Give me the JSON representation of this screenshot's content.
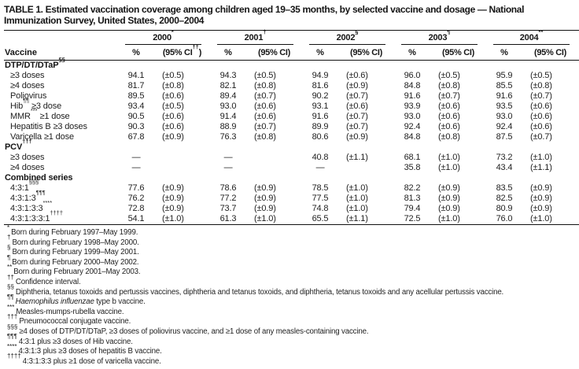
{
  "title": "TABLE 1. Estimated vaccination coverage among children aged 19–35 months, by selected vaccine and dosage — National Immunization Survey, United States, 2000–2004",
  "table": {
    "row_header": "Vaccine",
    "years": [
      {
        "label": "2000",
        "sup": "*",
        "pct_label": "%",
        "ci_prefix": "(95% CI",
        "ci_sup": "††",
        "ci_suffix": ")"
      },
      {
        "label": "2001",
        "sup": "†",
        "pct_label": "%",
        "ci_prefix": "(95% CI",
        "ci_sup": "",
        "ci_suffix": ")"
      },
      {
        "label": "2002",
        "sup": "§",
        "pct_label": "%",
        "ci_prefix": "(95% CI",
        "ci_sup": "",
        "ci_suffix": ")"
      },
      {
        "label": "2003",
        "sup": "¶",
        "pct_label": "%",
        "ci_prefix": "(95% CI",
        "ci_sup": "",
        "ci_suffix": ")"
      },
      {
        "label": "2004",
        "sup": "**",
        "pct_label": "%",
        "ci_prefix": "(95% CI",
        "ci_sup": "",
        "ci_suffix": ")"
      }
    ],
    "sections": [
      {
        "header": [
          {
            "t": "DTP/DT/DTaP"
          },
          {
            "s": "§§"
          }
        ],
        "rows": [
          {
            "label": [
              {
                "t": "≥3 doses"
              }
            ],
            "cells": [
              [
                "94.1",
                "(±0.5)"
              ],
              [
                "94.3",
                "(±0.5)"
              ],
              [
                "94.9",
                "(±0.6)"
              ],
              [
                "96.0",
                "(±0.5)"
              ],
              [
                "95.9",
                "(±0.5)"
              ]
            ]
          },
          {
            "label": [
              {
                "t": "≥4 doses"
              }
            ],
            "cells": [
              [
                "81.7",
                "(±0.8)"
              ],
              [
                "82.1",
                "(±0.8)"
              ],
              [
                "81.6",
                "(±0.9)"
              ],
              [
                "84.8",
                "(±0.8)"
              ],
              [
                "85.5",
                "(±0.8)"
              ]
            ]
          },
          {
            "label": [
              {
                "t": "Poliovirus"
              }
            ],
            "cells": [
              [
                "89.5",
                "(±0.6)"
              ],
              [
                "89.4",
                "(±0.7)"
              ],
              [
                "90.2",
                "(±0.7)"
              ],
              [
                "91.6",
                "(±0.7)"
              ],
              [
                "91.6",
                "(±0.7)"
              ]
            ]
          },
          {
            "label": [
              {
                "t": "Hib"
              },
              {
                "s": "¶¶"
              },
              {
                "t": " ≥3 dose"
              }
            ],
            "cells": [
              [
                "93.4",
                "(±0.5)"
              ],
              [
                "93.0",
                "(±0.6)"
              ],
              [
                "93.1",
                "(±0.6)"
              ],
              [
                "93.9",
                "(±0.6)"
              ],
              [
                "93.5",
                "(±0.6)"
              ]
            ]
          },
          {
            "label": [
              {
                "t": "MMR"
              },
              {
                "s": "***"
              },
              {
                "t": " ≥1 dose"
              }
            ],
            "cells": [
              [
                "90.5",
                "(±0.6)"
              ],
              [
                "91.4",
                "(±0.6)"
              ],
              [
                "91.6",
                "(±0.7)"
              ],
              [
                "93.0",
                "(±0.6)"
              ],
              [
                "93.0",
                "(±0.6)"
              ]
            ]
          },
          {
            "label": [
              {
                "t": "Hepatitis B ≥3 doses"
              }
            ],
            "cells": [
              [
                "90.3",
                "(±0.6)"
              ],
              [
                "88.9",
                "(±0.7)"
              ],
              [
                "89.9",
                "(±0.7)"
              ],
              [
                "92.4",
                "(±0.6)"
              ],
              [
                "92.4",
                "(±0.6)"
              ]
            ]
          },
          {
            "label": [
              {
                "t": "Varicella ≥1 dose"
              }
            ],
            "cells": [
              [
                "67.8",
                "(±0.9)"
              ],
              [
                "76.3",
                "(±0.8)"
              ],
              [
                "80.6",
                "(±0.9)"
              ],
              [
                "84.8",
                "(±0.8)"
              ],
              [
                "87.5",
                "(±0.7)"
              ]
            ]
          }
        ]
      },
      {
        "header": [
          {
            "t": "PCV"
          },
          {
            "s": "†††"
          }
        ],
        "rows": [
          {
            "label": [
              {
                "t": "≥3 doses"
              }
            ],
            "cells": [
              [
                "—",
                ""
              ],
              [
                "—",
                ""
              ],
              [
                "40.8",
                "(±1.1)"
              ],
              [
                "68.1",
                "(±1.0)"
              ],
              [
                "73.2",
                "(±1.0)"
              ]
            ]
          },
          {
            "label": [
              {
                "t": "≥4 doses"
              }
            ],
            "cells": [
              [
                "—",
                ""
              ],
              [
                "—",
                ""
              ],
              [
                "—",
                ""
              ],
              [
                "35.8",
                "(±1.0)"
              ],
              [
                "43.4",
                "(±1.1)"
              ]
            ]
          }
        ]
      },
      {
        "header": [
          {
            "t": "Combined series"
          }
        ],
        "rows": [
          {
            "label": [
              {
                "t": "4:3:1"
              },
              {
                "s": "§§§"
              }
            ],
            "cells": [
              [
                "77.6",
                "(±0.9)"
              ],
              [
                "78.6",
                "(±0.9)"
              ],
              [
                "78.5",
                "(±1.0)"
              ],
              [
                "82.2",
                "(±0.9)"
              ],
              [
                "83.5",
                "(±0.9)"
              ]
            ]
          },
          {
            "label": [
              {
                "t": "4:3:1:3"
              },
              {
                "s": "¶¶¶"
              }
            ],
            "cells": [
              [
                "76.2",
                "(±0.9)"
              ],
              [
                "77.2",
                "(±0.9)"
              ],
              [
                "77.5",
                "(±1.0)"
              ],
              [
                "81.3",
                "(±0.9)"
              ],
              [
                "82.5",
                "(±0.9)"
              ]
            ]
          },
          {
            "label": [
              {
                "t": "4:3:1:3:3"
              },
              {
                "s": "****"
              }
            ],
            "cells": [
              [
                "72.8",
                "(±0.9)"
              ],
              [
                "73.7",
                "(±0.9)"
              ],
              [
                "74.8",
                "(±1.0)"
              ],
              [
                "79.4",
                "(±0.9)"
              ],
              [
                "80.9",
                "(±0.9)"
              ]
            ]
          },
          {
            "label": [
              {
                "t": "4:3:1:3:3:1"
              },
              {
                "s": "††††"
              }
            ],
            "cells": [
              [
                "54.1",
                "(±1.0)"
              ],
              [
                "61.3",
                "(±1.0)"
              ],
              [
                "65.5",
                "(±1.1)"
              ],
              [
                "72.5",
                "(±1.0)"
              ],
              [
                "76.0",
                "(±1.0)"
              ]
            ]
          }
        ]
      }
    ]
  },
  "footnotes": [
    {
      "marker": "*",
      "segments": [
        {
          "t": "Born during February 1997–May 1999."
        }
      ]
    },
    {
      "marker": "†",
      "segments": [
        {
          "t": "Born during February 1998–May 2000."
        }
      ]
    },
    {
      "marker": "§",
      "segments": [
        {
          "t": "Born during February 1999–May 2001."
        }
      ]
    },
    {
      "marker": "¶",
      "segments": [
        {
          "t": "Born during February 2000–May 2002."
        }
      ]
    },
    {
      "marker": "**",
      "segments": [
        {
          "t": "Born during February 2001–May 2003."
        }
      ]
    },
    {
      "marker": "††",
      "segments": [
        {
          "t": "Confidence interval."
        }
      ]
    },
    {
      "marker": "§§",
      "segments": [
        {
          "t": "Diphtheria, tetanus toxoids and pertussis vaccines, diphtheria and tetanus toxoids, and diphtheria, tetanus toxoids and any acellular pertussis vaccine."
        }
      ]
    },
    {
      "marker": "¶¶",
      "segments": [
        {
          "i": "Haemophilus influenzae"
        },
        {
          "t": " type b vaccine."
        }
      ]
    },
    {
      "marker": "***",
      "segments": [
        {
          "t": "Measles-mumps-rubella vaccine."
        }
      ]
    },
    {
      "marker": "†††",
      "segments": [
        {
          "t": "Pneumococcal conjugate vaccine."
        }
      ]
    },
    {
      "marker": "§§§",
      "segments": [
        {
          "t": "≥4 doses of DTP/DT/DTaP, ≥3 doses of poliovirus vaccine, and ≥1 dose of any measles-containing vaccine."
        }
      ]
    },
    {
      "marker": "¶¶¶",
      "segments": [
        {
          "t": "4:3:1 plus ≥3 doses of Hib vaccine."
        }
      ]
    },
    {
      "marker": "****",
      "segments": [
        {
          "t": "4:3:1:3 plus ≥3 doses of hepatitis B vaccine."
        }
      ]
    },
    {
      "marker": "††††",
      "segments": [
        {
          "t": "4:3:1:3:3 plus ≥1 dose of varicella vaccine."
        }
      ]
    }
  ]
}
